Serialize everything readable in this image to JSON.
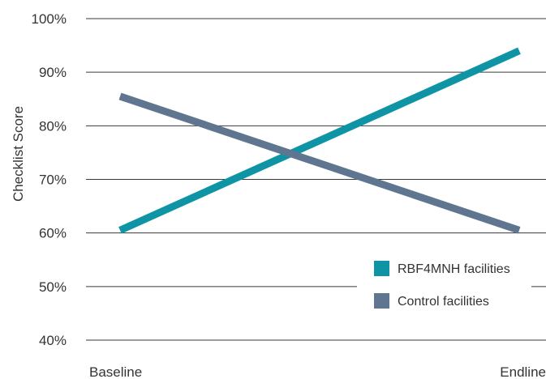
{
  "chart_data": {
    "type": "line",
    "title": "",
    "xlabel": "",
    "ylabel": "Checklist Score",
    "categories": [
      "Baseline",
      "Endline"
    ],
    "ylim": [
      40,
      100
    ],
    "yticks": [
      40,
      50,
      60,
      70,
      80,
      90,
      100
    ],
    "ytick_labels": [
      "40%",
      "50%",
      "60%",
      "70%",
      "80%",
      "90%",
      "100%"
    ],
    "grid": true,
    "legend_position": "bottom-right",
    "series": [
      {
        "name": "RBF4MNH facilities",
        "values": [
          60.5,
          94
        ],
        "color": "#0e94a4"
      },
      {
        "name": "Control facilities",
        "values": [
          85.5,
          60.5
        ],
        "color": "#5f7590"
      }
    ]
  }
}
